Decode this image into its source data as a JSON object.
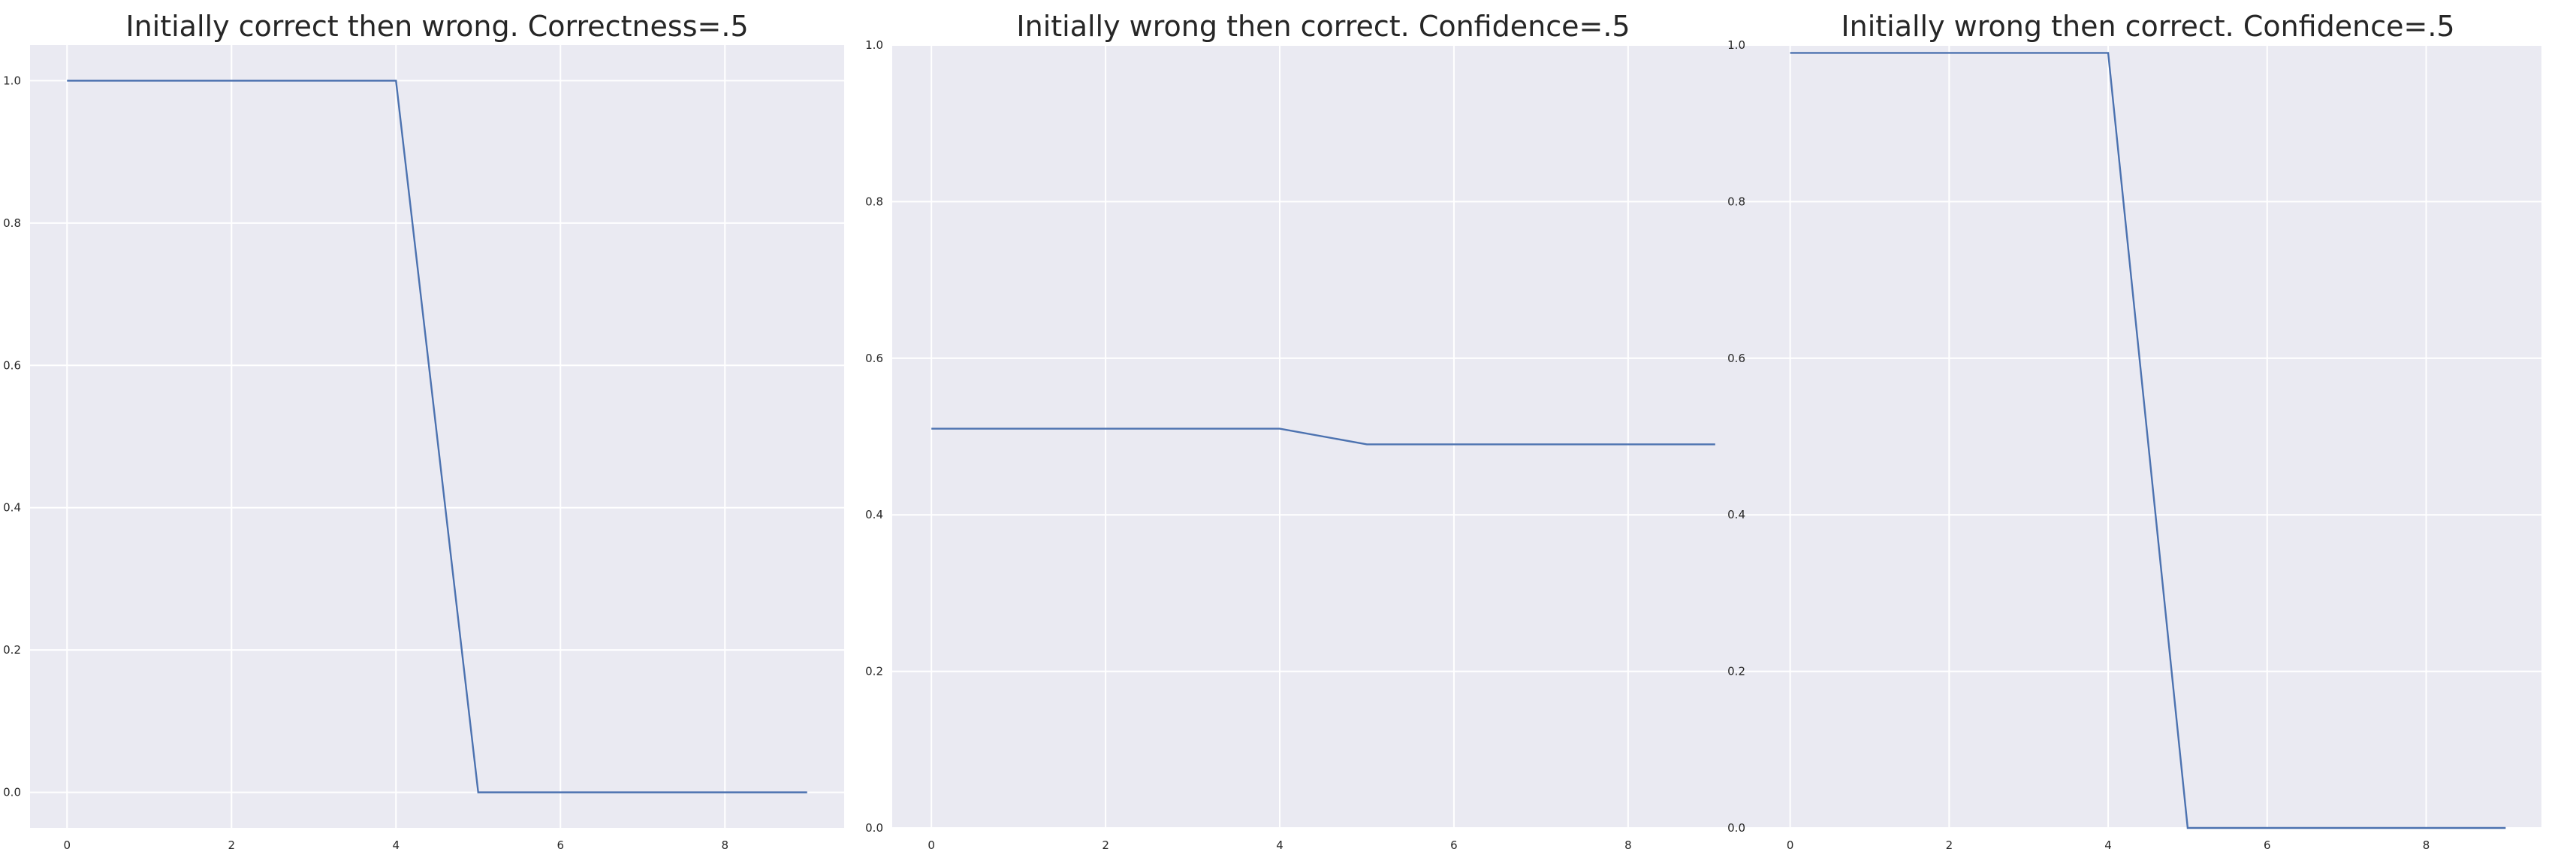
{
  "colors": {
    "plot_background": "#eaeaf2",
    "grid": "#ffffff",
    "series": "#4c72b0"
  },
  "chart_data": [
    {
      "type": "line",
      "title": "Initially correct then wrong. Correctness=.5",
      "xlabel": "",
      "ylabel": "",
      "xlim": [
        -0.45,
        9.45
      ],
      "ylim": [
        -0.05,
        1.05
      ],
      "grid": true,
      "legend": "none",
      "xticks": [
        0,
        2,
        4,
        6,
        8
      ],
      "yticks": [
        0.0,
        0.2,
        0.4,
        0.6,
        0.8,
        1.0
      ],
      "xtick_labels": [
        "0",
        "2",
        "4",
        "6",
        "8"
      ],
      "ytick_labels": [
        "0.0",
        "0.2",
        "0.4",
        "0.6",
        "0.8",
        "1.0"
      ],
      "series": [
        {
          "x": [
            0,
            1,
            2,
            3,
            4,
            5,
            6,
            7,
            8,
            9
          ],
          "values": [
            1.0,
            1.0,
            1.0,
            1.0,
            1.0,
            0.0,
            0.0,
            0.0,
            0.0,
            0.0
          ]
        }
      ]
    },
    {
      "type": "line",
      "title": "Initially wrong then correct. Confidence=.5",
      "xlabel": "",
      "ylabel": "",
      "xlim": [
        -0.45,
        9.45
      ],
      "ylim": [
        0.0,
        1.0
      ],
      "grid": true,
      "legend": "none",
      "xticks": [
        0,
        2,
        4,
        6,
        8
      ],
      "yticks": [
        0.0,
        0.2,
        0.4,
        0.6,
        0.8,
        1.0
      ],
      "xtick_labels": [
        "0",
        "2",
        "4",
        "6",
        "8"
      ],
      "ytick_labels": [
        "0.0",
        "0.2",
        "0.4",
        "0.6",
        "0.8",
        "1.0"
      ],
      "series": [
        {
          "x": [
            0,
            1,
            2,
            3,
            4,
            5,
            6,
            7,
            8,
            9
          ],
          "values": [
            0.51,
            0.51,
            0.51,
            0.51,
            0.51,
            0.49,
            0.49,
            0.49,
            0.49,
            0.49
          ]
        }
      ]
    },
    {
      "type": "line",
      "title": "Initially wrong then correct. Confidence=.5",
      "xlabel": "",
      "ylabel": "",
      "xlim": [
        -0.45,
        9.45
      ],
      "ylim": [
        0.0,
        1.0
      ],
      "grid": true,
      "legend": "none",
      "xticks": [
        0,
        2,
        4,
        6,
        8
      ],
      "yticks": [
        0.0,
        0.2,
        0.4,
        0.6,
        0.8,
        1.0
      ],
      "xtick_labels": [
        "0",
        "2",
        "4",
        "6",
        "8"
      ],
      "ytick_labels": [
        "0.0",
        "0.2",
        "0.4",
        "0.6",
        "0.8",
        "1.0"
      ],
      "series": [
        {
          "x": [
            0,
            1,
            2,
            3,
            4,
            5,
            6,
            7,
            8,
            9
          ],
          "values": [
            0.99,
            0.99,
            0.99,
            0.99,
            0.99,
            0.0,
            0.0,
            0.0,
            0.0,
            0.0
          ]
        }
      ]
    }
  ]
}
